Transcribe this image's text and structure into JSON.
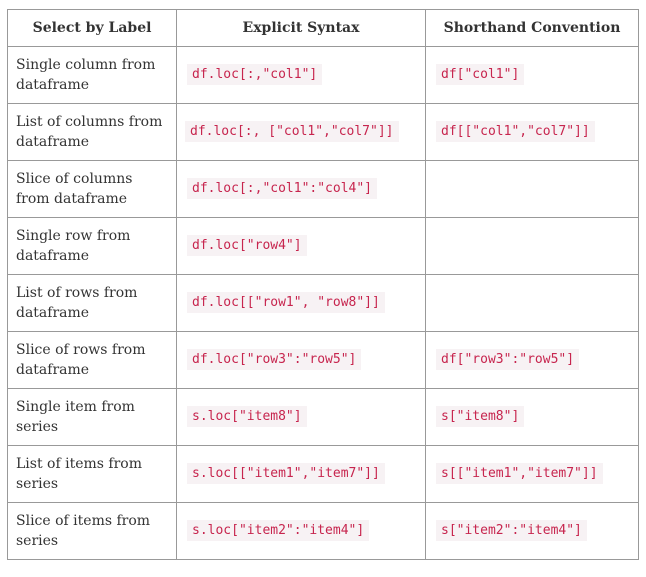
{
  "headers": [
    "Select by Label",
    "Explicit Syntax",
    "Shorthand Convention"
  ],
  "rows": [
    {
      "label": "Single column from dataframe",
      "explicit": "df.loc[:,\"col1\"]",
      "shorthand": "df[\"col1\"]"
    },
    {
      "label": "List of columns from dataframe",
      "explicit": "df.loc[:, [\"col1\",\"col7\"]]",
      "shorthand": "df[[\"col1\",\"col7\"]]"
    },
    {
      "label": "Slice of columns from dataframe",
      "explicit": "df.loc[:,\"col1\":\"col4\"]",
      "shorthand": ""
    },
    {
      "label": "Single row from dataframe",
      "explicit": "df.loc[\"row4\"]",
      "shorthand": ""
    },
    {
      "label": "List of rows from dataframe",
      "explicit": "df.loc[[\"row1\", \"row8\"]]",
      "shorthand": ""
    },
    {
      "label": "Slice of rows from dataframe",
      "explicit": "df.loc[\"row3\":\"row5\"]",
      "shorthand": "df[\"row3\":\"row5\"]"
    },
    {
      "label": "Single item from series",
      "explicit": "s.loc[\"item8\"]",
      "shorthand": "s[\"item8\"]"
    },
    {
      "label": "List of items from series",
      "explicit": "s.loc[[\"item1\",\"item7\"]]",
      "shorthand": "s[[\"item1\",\"item7\"]]"
    },
    {
      "label": "Slice of items from series",
      "explicit": "s.loc[\"item2\":\"item4\"]",
      "shorthand": "s[\"item2\":\"item4\"]"
    }
  ]
}
